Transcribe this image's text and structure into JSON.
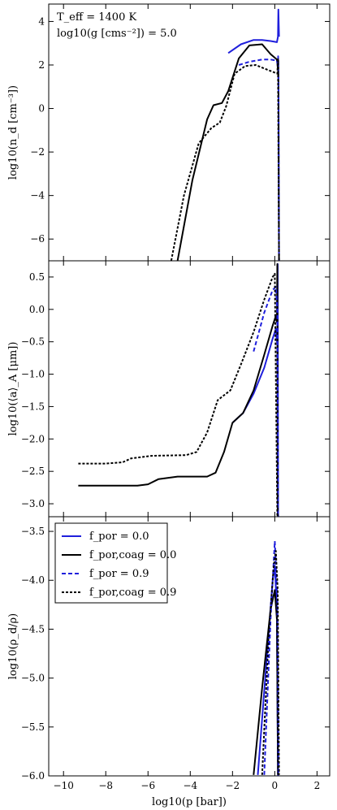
{
  "figure": {
    "annotation_line1": "T_eff = 1400 K",
    "annotation_line2": "log10(g [cms⁻²]) = 5.0",
    "shared_xlabel": "log10(p [bar])"
  },
  "colors": {
    "blue": "#1f1fdc",
    "black": "#000000"
  },
  "chart_data": [
    {
      "type": "line",
      "ylabel": "log10(n_d [cm⁻³])",
      "xlim": [
        -10.7,
        2.6
      ],
      "ylim": [
        -7,
        4.8
      ],
      "xticks": [
        -10,
        -8,
        -6,
        -4,
        -2,
        0,
        2
      ],
      "xtick_labels": [
        "",
        "",
        "",
        "",
        "",
        "",
        ""
      ],
      "yticks": [
        -6,
        -4,
        -2,
        0,
        2,
        4
      ],
      "ytick_labels": [
        "−6",
        "−4",
        "−2",
        "0",
        "2",
        "4"
      ],
      "series": [
        {
          "key": "s1",
          "style": "solid-blue",
          "x": [
            -2.2,
            -1.6,
            -1.0,
            -0.6,
            -0.2,
            0.1,
            0.15,
            0.17,
            0.2
          ],
          "y": [
            2.55,
            2.95,
            3.15,
            3.15,
            3.1,
            3.05,
            3.3,
            4.55,
            3.3
          ]
        },
        {
          "key": "s2",
          "style": "solid-black",
          "x": [
            -4.6,
            -3.9,
            -3.2,
            -2.9,
            -2.5,
            -2.2,
            -1.7,
            -1.2,
            -0.6,
            -0.2,
            0.1,
            0.15,
            0.17,
            0.2
          ],
          "y": [
            -6.99,
            -3.3,
            -0.5,
            0.15,
            0.25,
            0.8,
            2.3,
            2.9,
            2.95,
            2.5,
            2.25,
            1.8,
            2.2,
            -6.99
          ]
        },
        {
          "key": "s3",
          "style": "dashed-blue",
          "x": [
            -1.7,
            -1.2,
            -0.6,
            -0.2,
            0.1,
            0.14,
            0.16,
            0.18,
            0.2
          ],
          "y": [
            2.0,
            2.15,
            2.25,
            2.25,
            2.2,
            2.0,
            2.4,
            1.0,
            -6.99
          ]
        },
        {
          "key": "s4",
          "style": "dashed-black",
          "x": [
            -4.9,
            -4.3,
            -3.6,
            -3.0,
            -2.6,
            -2.3,
            -1.9,
            -1.4,
            -0.9,
            -0.4,
            0.0,
            0.12,
            0.15,
            0.2
          ],
          "y": [
            -6.99,
            -4.0,
            -1.6,
            -0.9,
            -0.65,
            0.1,
            1.6,
            1.95,
            2.0,
            1.8,
            1.65,
            1.6,
            2.3,
            -6.99
          ]
        }
      ]
    },
    {
      "type": "line",
      "ylabel": "log10(⟨a⟩_A [μm])",
      "xlim": [
        -10.7,
        2.6
      ],
      "ylim": [
        -3.2,
        0.75
      ],
      "xticks": [
        -10,
        -8,
        -6,
        -4,
        -2,
        0,
        2
      ],
      "xtick_labels": [
        "",
        "",
        "",
        "",
        "",
        "",
        ""
      ],
      "yticks": [
        -3.0,
        -2.5,
        -2.0,
        -1.5,
        -1.0,
        -0.5,
        0.0,
        0.5
      ],
      "ytick_labels": [
        "−3.0",
        "−2.5",
        "−2.0",
        "−1.5",
        "−1.0",
        "−0.5",
        "0.0",
        "0.5"
      ],
      "series": [
        {
          "key": "s1",
          "style": "solid-blue",
          "x": [
            -2.0,
            -1.5,
            -1.0,
            -0.5,
            -0.1,
            0.05,
            0.12,
            0.14,
            0.16,
            0.2
          ],
          "y": [
            -1.75,
            -1.6,
            -1.3,
            -0.9,
            -0.45,
            -0.3,
            -0.55,
            0.7,
            -3.19,
            -3.19
          ]
        },
        {
          "key": "s2",
          "style": "solid-black",
          "x": [
            -9.3,
            -6.5,
            -6.0,
            -5.5,
            -4.6,
            -3.2,
            -2.8,
            -2.4,
            -2.0,
            -1.5,
            -1.0,
            -0.5,
            -0.1,
            0.05,
            0.1,
            0.12,
            0.14
          ],
          "y": [
            -2.72,
            -2.72,
            -2.7,
            -2.62,
            -2.58,
            -2.58,
            -2.52,
            -2.2,
            -1.75,
            -1.6,
            -1.25,
            -0.7,
            -0.25,
            -0.1,
            -0.2,
            0.7,
            -3.19
          ]
        },
        {
          "key": "s3",
          "style": "dashed-blue",
          "x": [
            -1.0,
            -0.5,
            -0.1,
            0.05,
            0.12,
            0.15,
            0.2
          ],
          "y": [
            -0.65,
            -0.05,
            0.3,
            0.35,
            0.0,
            -3.19,
            -3.19
          ]
        },
        {
          "key": "s4",
          "style": "dashed-black",
          "x": [
            -9.3,
            -8.0,
            -7.2,
            -6.8,
            -5.8,
            -4.2,
            -3.7,
            -3.2,
            -2.7,
            -2.1,
            -1.6,
            -1.0,
            -0.5,
            -0.1,
            0.0,
            0.12
          ],
          "y": [
            -2.38,
            -2.38,
            -2.36,
            -2.3,
            -2.26,
            -2.25,
            -2.2,
            -1.9,
            -1.4,
            -1.25,
            -0.85,
            -0.35,
            0.15,
            0.5,
            0.55,
            -3.19
          ]
        }
      ]
    },
    {
      "type": "line",
      "ylabel": "log10(ρ_d/ρ)",
      "xlabel": "log10(p [bar])",
      "xlim": [
        -10.7,
        2.6
      ],
      "ylim": [
        -6.0,
        -3.35
      ],
      "xticks": [
        -10,
        -8,
        -6,
        -4,
        -2,
        0,
        2
      ],
      "xtick_labels": [
        "−10",
        "−8",
        "−6",
        "−4",
        "−2",
        "0",
        "2"
      ],
      "yticks": [
        -6.0,
        -5.5,
        -5.0,
        -4.5,
        -4.0,
        -3.5
      ],
      "ytick_labels": [
        "−6.0",
        "−5.5",
        "−5.0",
        "−4.5",
        "−4.0",
        "−3.5"
      ],
      "series": [
        {
          "key": "s1",
          "style": "solid-blue",
          "x": [
            -0.8,
            -0.4,
            -0.1,
            0.0,
            0.1,
            0.15,
            0.2
          ],
          "y": [
            -5.99,
            -4.85,
            -4.0,
            -3.85,
            -4.3,
            -5.99,
            -5.99
          ]
        },
        {
          "key": "s2",
          "style": "solid-black",
          "x": [
            -1.0,
            -0.6,
            -0.2,
            0.0,
            0.1,
            0.15
          ],
          "y": [
            -5.99,
            -5.1,
            -4.3,
            -4.1,
            -4.4,
            -5.99
          ]
        },
        {
          "key": "s3",
          "style": "dashed-blue",
          "x": [
            -0.5,
            -0.2,
            0.0,
            0.12,
            0.18
          ],
          "y": [
            -5.99,
            -4.4,
            -3.6,
            -4.2,
            -5.99
          ]
        },
        {
          "key": "s4",
          "style": "dashed-black",
          "x": [
            -0.6,
            -0.3,
            -0.05,
            0.05,
            0.14,
            0.2
          ],
          "y": [
            -5.99,
            -4.6,
            -3.85,
            -3.7,
            -4.1,
            -5.99
          ]
        }
      ],
      "legend": {
        "placement": "top-left",
        "entries": [
          {
            "key": "s1",
            "label": "f_por = 0.0"
          },
          {
            "key": "s2",
            "label": "f_por,coag = 0.0"
          },
          {
            "key": "s3",
            "label": "f_por = 0.9"
          },
          {
            "key": "s4",
            "label": "f_por,coag = 0.9"
          }
        ]
      }
    }
  ]
}
